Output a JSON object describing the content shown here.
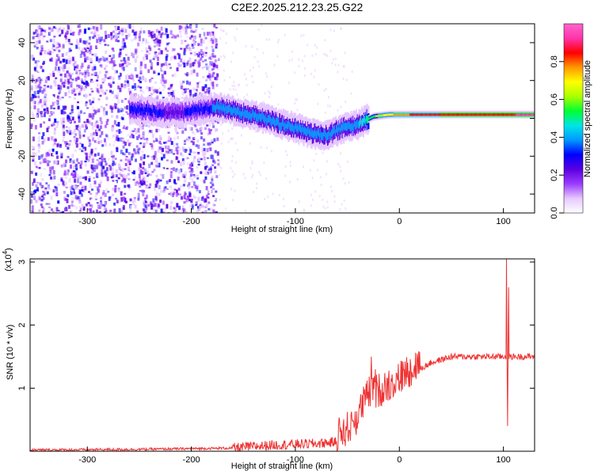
{
  "title": "C2E2.2025.212.23.25.G22",
  "chart_data": [
    {
      "type": "heatmap",
      "name": "spectrogram",
      "xlabel": "Height of straight line (km)",
      "ylabel": "Frequency (Hz)",
      "xlim": [
        -355,
        130
      ],
      "ylim": [
        -50,
        50
      ],
      "xticks": [
        -300,
        -200,
        -100,
        0,
        100
      ],
      "yticks": [
        -40,
        -20,
        0,
        20,
        40
      ],
      "colorbar": {
        "label": "Normalized spectral amplitude",
        "range": [
          0,
          1
        ],
        "ticks": [
          "0.0",
          "0.2",
          "0.4",
          "0.6",
          "0.8"
        ],
        "tick_values": [
          0.0,
          0.2,
          0.4,
          0.6,
          0.8
        ],
        "colors": [
          "#ffffff",
          "#e6c8ff",
          "#9b3cff",
          "#5a00e0",
          "#0000ff",
          "#0099ff",
          "#00e5e5",
          "#00ff33",
          "#aaff00",
          "#ffff00",
          "#ff9900",
          "#ff0000",
          "#ff33aa",
          "#ff66cc"
        ]
      },
      "ridge": [
        {
          "x": -260,
          "y": 5,
          "a": 0.35
        },
        {
          "x": -240,
          "y": 4,
          "a": 0.35
        },
        {
          "x": -225,
          "y": 3,
          "a": 0.3
        },
        {
          "x": -210,
          "y": 3,
          "a": 0.3
        },
        {
          "x": -175,
          "y": 6,
          "a": 0.4
        },
        {
          "x": -160,
          "y": 4,
          "a": 0.4
        },
        {
          "x": -145,
          "y": 2,
          "a": 0.4
        },
        {
          "x": -130,
          "y": 0,
          "a": 0.4
        },
        {
          "x": -115,
          "y": -3,
          "a": 0.4
        },
        {
          "x": -100,
          "y": -5,
          "a": 0.4
        },
        {
          "x": -85,
          "y": -8,
          "a": 0.4
        },
        {
          "x": -70,
          "y": -9,
          "a": 0.4
        },
        {
          "x": -55,
          "y": -5,
          "a": 0.45
        },
        {
          "x": -40,
          "y": -3,
          "a": 0.45
        },
        {
          "x": -25,
          "y": 1,
          "a": 0.6
        },
        {
          "x": -10,
          "y": 2,
          "a": 0.75
        },
        {
          "x": 10,
          "y": 2,
          "a": 0.85
        },
        {
          "x": 40,
          "y": 2,
          "a": 0.9
        },
        {
          "x": 70,
          "y": 2,
          "a": 0.92
        },
        {
          "x": 95,
          "y": 2,
          "a": 0.9
        },
        {
          "x": 130,
          "y": 2,
          "a": 0.95
        }
      ]
    },
    {
      "type": "line",
      "name": "snr",
      "xlabel": "Height of straight line (km)",
      "ylabel": "SNR (10 * v/v)",
      "y_multiplier": "(x10",
      "y_multiplier_exp": "4",
      "xlim": [
        -355,
        130
      ],
      "ylim": [
        0,
        3.05
      ],
      "xticks": [
        -300,
        -200,
        -100,
        0,
        100
      ],
      "yticks": [
        1,
        2,
        3
      ],
      "color": "#ee3333",
      "envelope": [
        {
          "x": -355,
          "y": 0.02
        },
        {
          "x": -250,
          "y": 0.03
        },
        {
          "x": -160,
          "y": 0.05
        },
        {
          "x": -120,
          "y": 0.1
        },
        {
          "x": -80,
          "y": 0.12
        },
        {
          "x": -60,
          "y": 0.15
        },
        {
          "x": -45,
          "y": 0.3
        },
        {
          "x": -30,
          "y": 0.8
        },
        {
          "x": -20,
          "y": 0.85
        },
        {
          "x": -10,
          "y": 0.95
        },
        {
          "x": 0,
          "y": 1.05
        },
        {
          "x": 15,
          "y": 1.25
        },
        {
          "x": 30,
          "y": 1.4
        },
        {
          "x": 50,
          "y": 1.5
        },
        {
          "x": 70,
          "y": 1.5
        },
        {
          "x": 95,
          "y": 1.5
        },
        {
          "x": 110,
          "y": 1.5
        },
        {
          "x": 130,
          "y": 1.5
        }
      ],
      "spikes": [
        {
          "x": 103,
          "y": 3.05
        },
        {
          "x": 104,
          "y": 0.4
        },
        {
          "x": 105,
          "y": 2.6
        },
        {
          "x": -27,
          "y": 1.5
        },
        {
          "x": -23,
          "y": 1.3
        }
      ]
    }
  ]
}
